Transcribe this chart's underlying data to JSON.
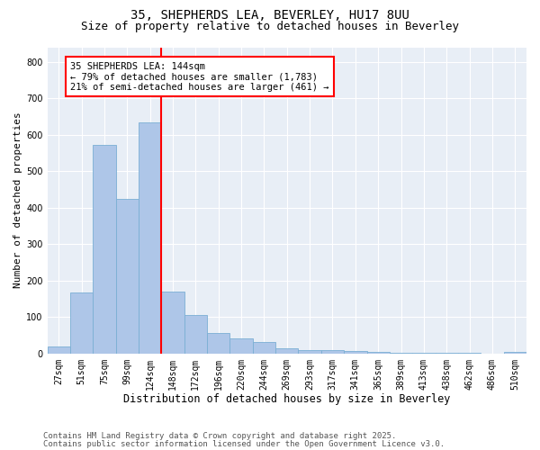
{
  "title_line1": "35, SHEPHERDS LEA, BEVERLEY, HU17 8UU",
  "title_line2": "Size of property relative to detached houses in Beverley",
  "xlabel": "Distribution of detached houses by size in Beverley",
  "ylabel": "Number of detached properties",
  "bar_labels": [
    "27sqm",
    "51sqm",
    "75sqm",
    "99sqm",
    "124sqm",
    "148sqm",
    "172sqm",
    "196sqm",
    "220sqm",
    "244sqm",
    "269sqm",
    "293sqm",
    "317sqm",
    "341sqm",
    "365sqm",
    "389sqm",
    "413sqm",
    "438sqm",
    "462sqm",
    "486sqm",
    "510sqm"
  ],
  "bar_values": [
    18,
    168,
    573,
    425,
    635,
    170,
    105,
    57,
    42,
    32,
    15,
    10,
    9,
    7,
    5,
    3,
    2,
    1,
    1,
    0,
    5
  ],
  "bar_color": "#aec6e8",
  "bar_edgecolor": "#7aafd4",
  "vline_x_index": 5,
  "vline_color": "red",
  "annotation_text": "35 SHEPHERDS LEA: 144sqm\n← 79% of detached houses are smaller (1,783)\n21% of semi-detached houses are larger (461) →",
  "annotation_box_color": "white",
  "annotation_box_edgecolor": "red",
  "ylim": [
    0,
    840
  ],
  "yticks": [
    0,
    100,
    200,
    300,
    400,
    500,
    600,
    700,
    800
  ],
  "background_color": "#e8eef6",
  "footer_line1": "Contains HM Land Registry data © Crown copyright and database right 2025.",
  "footer_line2": "Contains public sector information licensed under the Open Government Licence v3.0.",
  "title_fontsize": 10,
  "subtitle_fontsize": 9,
  "tick_fontsize": 7,
  "ylabel_fontsize": 8,
  "xlabel_fontsize": 8.5,
  "annotation_fontsize": 7.5,
  "footer_fontsize": 6.5
}
